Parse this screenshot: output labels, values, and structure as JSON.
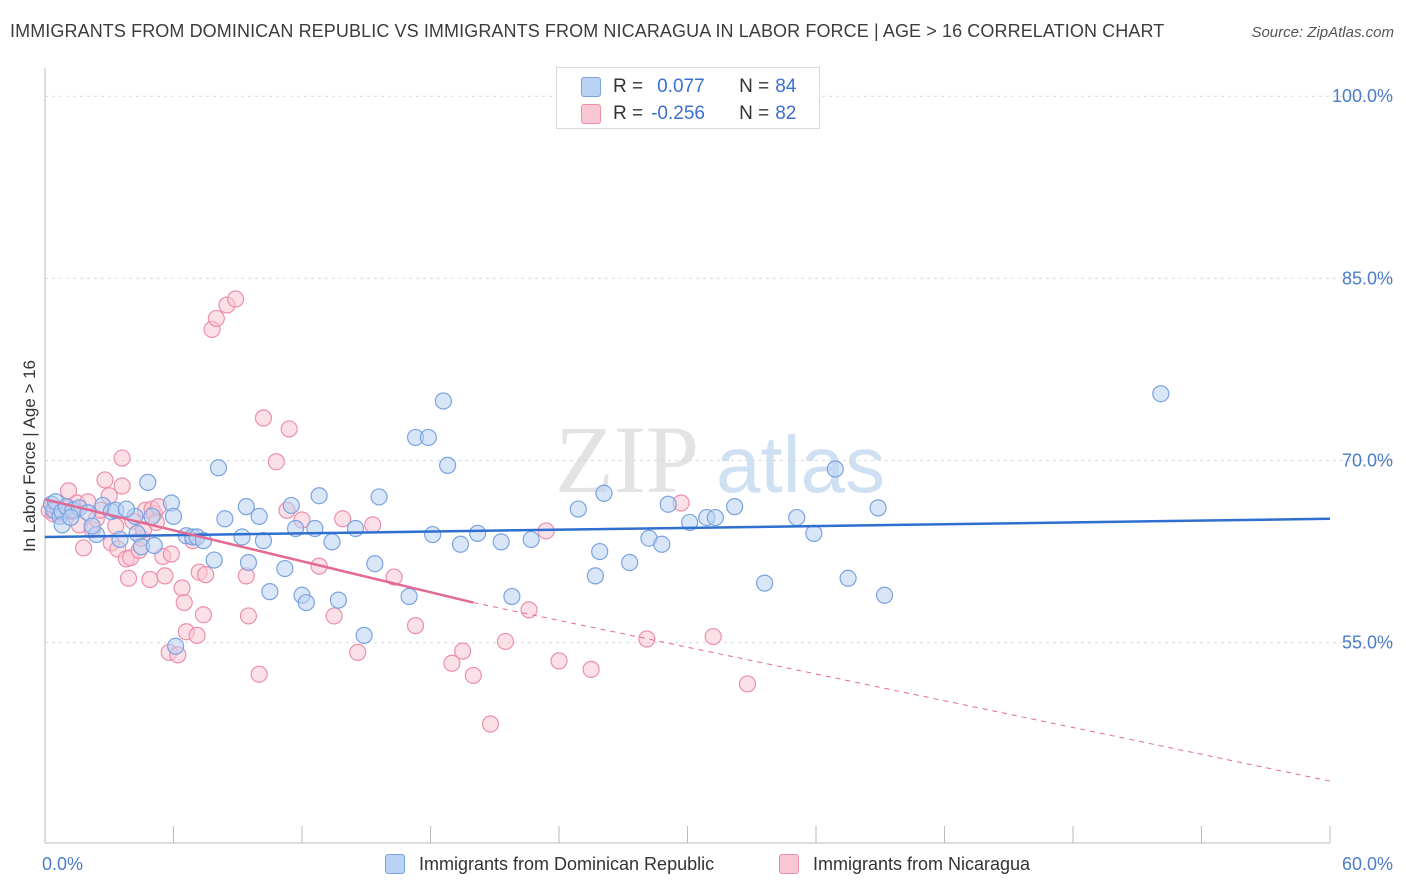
{
  "title": "IMMIGRANTS FROM DOMINICAN REPUBLIC VS IMMIGRANTS FROM NICARAGUA IN LABOR FORCE | AGE > 16 CORRELATION CHART",
  "source": "Source: ZipAtlas.com",
  "watermark": {
    "zip": "ZIP",
    "atlas": "atlas"
  },
  "legend_top": [
    {
      "r_label": "R = ",
      "r_value": "0.077",
      "n_label": "N = ",
      "n_value": "84"
    },
    {
      "r_label": "R = ",
      "r_value": "-0.256",
      "n_label": "N = ",
      "n_value": "82"
    }
  ],
  "colors": {
    "blue_fill": "#b9d1f3",
    "blue_stroke": "#7aa3e0",
    "blue_line": "#2f6fd0",
    "pink_fill": "#f9c6d4",
    "pink_stroke": "#ec8fab",
    "pink_line": "#e36a93",
    "grid": "#d9d9d9",
    "tick_label": "#4a7cc9"
  },
  "chart_data": {
    "type": "scatter",
    "title": "IMMIGRANTS FROM DOMINICAN REPUBLIC VS IMMIGRANTS FROM NICARAGUA IN LABOR FORCE | AGE > 16 CORRELATION CHART",
    "xlabel": "",
    "ylabel": "In Labor Force | Age > 16",
    "xlim": [
      0,
      60
    ],
    "ylim": [
      38.5,
      101.5
    ],
    "x_tick_labels": [
      "0.0%",
      "60.0%"
    ],
    "y_ticks": [
      55,
      70,
      85,
      100
    ],
    "y_tick_labels": [
      "55.0%",
      "70.0%",
      "85.0%",
      "100.0%"
    ],
    "grid": true,
    "legend_position": "top-center",
    "series": [
      {
        "name": "Immigrants from Dominican Republic",
        "color": "#b9d1f3",
        "points": [
          [
            0.3,
            66.4
          ],
          [
            0.4,
            65.9
          ],
          [
            0.5,
            66.6
          ],
          [
            0.7,
            65.4
          ],
          [
            0.8,
            65.8
          ],
          [
            1.0,
            66.2
          ],
          [
            1.3,
            65.9
          ],
          [
            1.6,
            66.1
          ],
          [
            2.0,
            65.7
          ],
          [
            2.4,
            63.9
          ],
          [
            2.7,
            66.3
          ],
          [
            3.1,
            65.8
          ],
          [
            3.3,
            65.9
          ],
          [
            3.5,
            63.5
          ],
          [
            4.2,
            65.4
          ],
          [
            4.3,
            64.0
          ],
          [
            4.5,
            62.9
          ],
          [
            4.8,
            68.2
          ],
          [
            5.0,
            65.4
          ],
          [
            5.1,
            63.0
          ],
          [
            5.9,
            66.5
          ],
          [
            6.0,
            65.4
          ],
          [
            6.1,
            54.7
          ],
          [
            6.6,
            63.8
          ],
          [
            6.9,
            63.7
          ],
          [
            7.1,
            63.7
          ],
          [
            7.4,
            63.4
          ],
          [
            7.9,
            61.8
          ],
          [
            8.1,
            69.4
          ],
          [
            8.4,
            65.2
          ],
          [
            9.2,
            63.7
          ],
          [
            9.4,
            66.2
          ],
          [
            9.5,
            61.6
          ],
          [
            10.0,
            65.4
          ],
          [
            10.2,
            63.4
          ],
          [
            10.5,
            59.2
          ],
          [
            11.2,
            61.1
          ],
          [
            11.5,
            66.3
          ],
          [
            11.7,
            64.4
          ],
          [
            12.0,
            58.9
          ],
          [
            12.2,
            58.3
          ],
          [
            12.6,
            64.4
          ],
          [
            12.8,
            67.1
          ],
          [
            13.4,
            63.3
          ],
          [
            13.7,
            58.5
          ],
          [
            14.5,
            64.4
          ],
          [
            14.9,
            55.6
          ],
          [
            15.4,
            61.5
          ],
          [
            15.6,
            67.0
          ],
          [
            17.0,
            58.8
          ],
          [
            17.3,
            71.9
          ],
          [
            17.9,
            71.9
          ],
          [
            18.1,
            63.9
          ],
          [
            18.6,
            74.9
          ],
          [
            18.8,
            69.6
          ],
          [
            19.4,
            63.1
          ],
          [
            20.2,
            64.0
          ],
          [
            21.3,
            63.3
          ],
          [
            21.8,
            58.8
          ],
          [
            22.7,
            63.5
          ],
          [
            24.9,
            66.0
          ],
          [
            25.7,
            60.5
          ],
          [
            25.9,
            62.5
          ],
          [
            26.1,
            67.3
          ],
          [
            27.3,
            61.6
          ],
          [
            28.2,
            63.6
          ],
          [
            28.8,
            63.1
          ],
          [
            29.1,
            66.4
          ],
          [
            30.1,
            64.9
          ],
          [
            30.9,
            65.3
          ],
          [
            31.3,
            65.3
          ],
          [
            32.2,
            66.2
          ],
          [
            33.6,
            59.9
          ],
          [
            35.1,
            65.3
          ],
          [
            35.9,
            64.0
          ],
          [
            36.9,
            69.3
          ],
          [
            37.5,
            60.3
          ],
          [
            38.9,
            66.1
          ],
          [
            39.2,
            58.9
          ],
          [
            52.1,
            75.5
          ],
          [
            0.8,
            64.7
          ],
          [
            1.2,
            65.3
          ],
          [
            2.2,
            64.6
          ],
          [
            3.8,
            66.0
          ]
        ]
      },
      {
        "name": "Immigrants from Nicaragua",
        "color": "#f9c6d4",
        "points": [
          [
            0.2,
            65.9
          ],
          [
            0.4,
            65.6
          ],
          [
            0.5,
            65.8
          ],
          [
            0.6,
            66.0
          ],
          [
            0.7,
            65.4
          ],
          [
            0.8,
            65.7
          ],
          [
            1.0,
            66.1
          ],
          [
            1.1,
            67.5
          ],
          [
            1.3,
            65.8
          ],
          [
            1.4,
            66.0
          ],
          [
            1.5,
            66.5
          ],
          [
            1.6,
            64.7
          ],
          [
            1.8,
            62.8
          ],
          [
            2.0,
            66.6
          ],
          [
            2.2,
            64.3
          ],
          [
            2.4,
            65.2
          ],
          [
            2.6,
            65.9
          ],
          [
            2.8,
            68.4
          ],
          [
            3.0,
            67.1
          ],
          [
            3.1,
            63.2
          ],
          [
            3.3,
            64.6
          ],
          [
            3.4,
            62.7
          ],
          [
            3.6,
            67.9
          ],
          [
            3.6,
            70.2
          ],
          [
            3.8,
            61.9
          ],
          [
            3.9,
            60.3
          ],
          [
            4.0,
            62.0
          ],
          [
            4.1,
            65.0
          ],
          [
            4.4,
            62.6
          ],
          [
            4.5,
            63.6
          ],
          [
            4.6,
            64.3
          ],
          [
            4.7,
            65.9
          ],
          [
            4.9,
            60.2
          ],
          [
            5.0,
            66.0
          ],
          [
            5.1,
            65.6
          ],
          [
            5.3,
            66.2
          ],
          [
            5.5,
            62.1
          ],
          [
            5.6,
            60.5
          ],
          [
            5.8,
            54.2
          ],
          [
            5.9,
            62.3
          ],
          [
            6.2,
            54.0
          ],
          [
            6.4,
            59.5
          ],
          [
            6.5,
            58.3
          ],
          [
            6.6,
            55.9
          ],
          [
            6.9,
            63.4
          ],
          [
            7.1,
            55.6
          ],
          [
            7.2,
            60.8
          ],
          [
            7.4,
            57.3
          ],
          [
            7.5,
            60.6
          ],
          [
            7.8,
            80.8
          ],
          [
            8.0,
            81.7
          ],
          [
            8.5,
            82.8
          ],
          [
            8.9,
            83.3
          ],
          [
            9.4,
            60.5
          ],
          [
            9.5,
            57.2
          ],
          [
            10.0,
            52.4
          ],
          [
            10.2,
            73.5
          ],
          [
            10.8,
            69.9
          ],
          [
            11.3,
            65.9
          ],
          [
            11.4,
            72.6
          ],
          [
            12.0,
            65.1
          ],
          [
            12.8,
            61.3
          ],
          [
            13.5,
            57.2
          ],
          [
            13.9,
            65.2
          ],
          [
            14.6,
            54.2
          ],
          [
            15.3,
            64.7
          ],
          [
            16.3,
            60.4
          ],
          [
            17.3,
            56.4
          ],
          [
            19.0,
            53.3
          ],
          [
            19.5,
            54.3
          ],
          [
            20.0,
            52.3
          ],
          [
            20.8,
            48.3
          ],
          [
            21.5,
            55.1
          ],
          [
            22.6,
            57.7
          ],
          [
            23.4,
            64.2
          ],
          [
            24.0,
            53.5
          ],
          [
            25.5,
            52.8
          ],
          [
            28.1,
            55.3
          ],
          [
            29.7,
            66.5
          ],
          [
            31.2,
            55.5
          ],
          [
            32.8,
            51.6
          ],
          [
            5.2,
            64.9
          ]
        ]
      }
    ],
    "trendlines": [
      {
        "series": "Immigrants from Dominican Republic",
        "x": [
          0,
          60
        ],
        "y": [
          63.7,
          65.2
        ],
        "style": "solid"
      },
      {
        "series": "Immigrants from Nicaragua",
        "x": [
          0,
          20
        ],
        "y": [
          66.8,
          58.3
        ],
        "style": "solid"
      },
      {
        "series": "Immigrants from Nicaragua",
        "x": [
          20,
          60
        ],
        "y": [
          58.3,
          43.6
        ],
        "style": "dashed"
      }
    ]
  }
}
